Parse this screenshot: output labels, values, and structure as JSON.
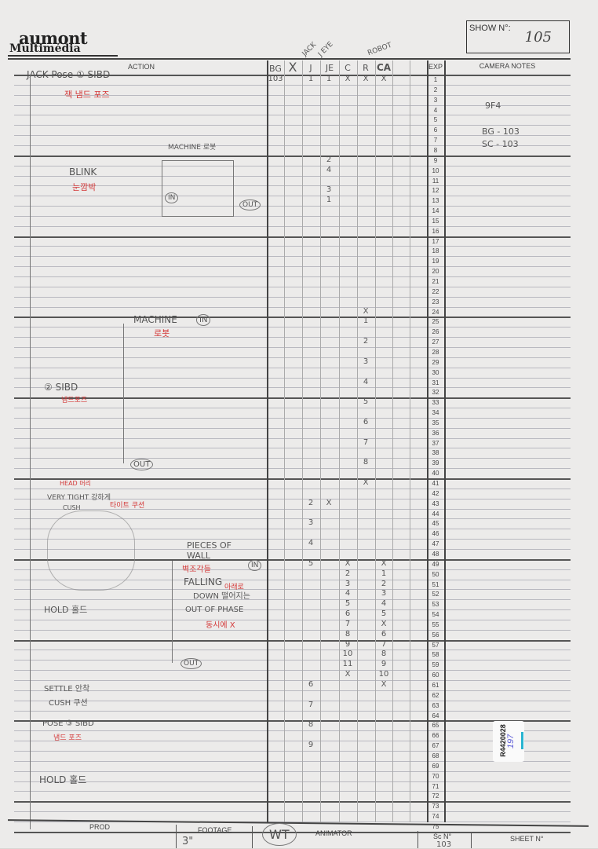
{
  "header": {
    "logo_line1": "aumont",
    "logo_line2": "Multimédia",
    "show_label": "SHOW N°:",
    "show_value": "105"
  },
  "columns": {
    "action": "ACTION",
    "bg": "BG",
    "x": "X",
    "j": "J",
    "je": "JE",
    "c": "C",
    "r": "R",
    "ca": "CA",
    "exp": "EXP",
    "camera_notes": "CAMERA NOTES",
    "group_jack": "JACK",
    "group_jeye": "J EYE",
    "group_robot": "ROBOT"
  },
  "exp_numbers": [
    "1",
    "2",
    "3",
    "4",
    "5",
    "6",
    "7",
    "8",
    "9",
    "10",
    "11",
    "12",
    "13",
    "14",
    "15",
    "16",
    "17",
    "18",
    "19",
    "20",
    "21",
    "22",
    "23",
    "24",
    "25",
    "26",
    "27",
    "28",
    "29",
    "30",
    "31",
    "32",
    "33",
    "34",
    "35",
    "36",
    "37",
    "38",
    "39",
    "40",
    "41",
    "42",
    "43",
    "44",
    "45",
    "46",
    "47",
    "48",
    "49",
    "50",
    "51",
    "52",
    "53",
    "54",
    "55",
    "56",
    "57",
    "58",
    "59",
    "60",
    "61",
    "62",
    "63",
    "64",
    "65",
    "66",
    "67",
    "68",
    "69",
    "70",
    "71",
    "72",
    "73",
    "74",
    "75"
  ],
  "marks": [
    {
      "row": 1,
      "col": "bg",
      "text": "103"
    },
    {
      "row": 1,
      "col": "j",
      "text": "1"
    },
    {
      "row": 1,
      "col": "je",
      "text": "1"
    },
    {
      "row": 1,
      "col": "c",
      "text": "X"
    },
    {
      "row": 1,
      "col": "r",
      "text": "X"
    },
    {
      "row": 1,
      "col": "ca",
      "text": "X"
    },
    {
      "row": 9,
      "col": "je",
      "text": "2"
    },
    {
      "row": 10,
      "col": "je",
      "text": "4"
    },
    {
      "row": 12,
      "col": "je",
      "text": "3"
    },
    {
      "row": 13,
      "col": "je",
      "text": "1"
    },
    {
      "row": 24,
      "col": "r",
      "text": "X"
    },
    {
      "row": 25,
      "col": "r",
      "text": "1"
    },
    {
      "row": 27,
      "col": "r",
      "text": "2"
    },
    {
      "row": 29,
      "col": "r",
      "text": "3"
    },
    {
      "row": 31,
      "col": "r",
      "text": "4"
    },
    {
      "row": 33,
      "col": "r",
      "text": "5"
    },
    {
      "row": 35,
      "col": "r",
      "text": "6"
    },
    {
      "row": 37,
      "col": "r",
      "text": "7"
    },
    {
      "row": 39,
      "col": "r",
      "text": "8"
    },
    {
      "row": 41,
      "col": "r",
      "text": "X"
    },
    {
      "row": 43,
      "col": "j",
      "text": "2"
    },
    {
      "row": 43,
      "col": "je",
      "text": "X"
    },
    {
      "row": 45,
      "col": "j",
      "text": "3"
    },
    {
      "row": 47,
      "col": "j",
      "text": "4"
    },
    {
      "row": 49,
      "col": "j",
      "text": "5"
    },
    {
      "row": 61,
      "col": "j",
      "text": "6"
    },
    {
      "row": 63,
      "col": "j",
      "text": "7"
    },
    {
      "row": 65,
      "col": "j",
      "text": "8"
    },
    {
      "row": 67,
      "col": "j",
      "text": "9"
    },
    {
      "row": 49,
      "col": "c",
      "text": "X"
    },
    {
      "row": 50,
      "col": "c",
      "text": "2"
    },
    {
      "row": 51,
      "col": "c",
      "text": "3"
    },
    {
      "row": 52,
      "col": "c",
      "text": "4"
    },
    {
      "row": 53,
      "col": "c",
      "text": "5"
    },
    {
      "row": 54,
      "col": "c",
      "text": "6"
    },
    {
      "row": 55,
      "col": "c",
      "text": "7"
    },
    {
      "row": 56,
      "col": "c",
      "text": "8"
    },
    {
      "row": 57,
      "col": "c",
      "text": "9"
    },
    {
      "row": 58,
      "col": "c",
      "text": "10"
    },
    {
      "row": 59,
      "col": "c",
      "text": "11"
    },
    {
      "row": 60,
      "col": "c",
      "text": "X"
    },
    {
      "row": 49,
      "col": "ca",
      "text": "X"
    },
    {
      "row": 50,
      "col": "ca",
      "text": "1"
    },
    {
      "row": 51,
      "col": "ca",
      "text": "2"
    },
    {
      "row": 52,
      "col": "ca",
      "text": "3"
    },
    {
      "row": 53,
      "col": "ca",
      "text": "4"
    },
    {
      "row": 54,
      "col": "ca",
      "text": "5"
    },
    {
      "row": 55,
      "col": "ca",
      "text": "X"
    },
    {
      "row": 56,
      "col": "ca",
      "text": "6"
    },
    {
      "row": 57,
      "col": "ca",
      "text": "7"
    },
    {
      "row": 58,
      "col": "ca",
      "text": "8"
    },
    {
      "row": 59,
      "col": "ca",
      "text": "9"
    },
    {
      "row": 60,
      "col": "ca",
      "text": "10"
    },
    {
      "row": 61,
      "col": "ca",
      "text": "X"
    }
  ],
  "camera_notes": [
    "9F4",
    "BG - 103",
    "SC - 103"
  ],
  "action_notes": {
    "jack_pose": "JACK  Pose ① SIBD",
    "jack_pose_kr": "잭  냄드 포즈",
    "machine": "MACHINE 로봇",
    "blink": "BLINK",
    "blink_kr": "눈깜박",
    "in1": "IN",
    "out1": "OUT",
    "machine2": "MACHINE",
    "machine2_kr": "로봇",
    "in2": "IN",
    "sibd2": "② SIBD",
    "sibd2_kr": "냄드포즈",
    "out2": "OUT",
    "head": "HEAD 머리",
    "very_tight": "VERY TIGHT 강하게",
    "very_tight_kr": "타이트 쿠션",
    "cush": "CUSH",
    "pieces": "PIECES OF WALL",
    "pieces_kr": "벽조각들",
    "in3": "IN",
    "falling": "FALLING",
    "falling_kr": "아래로",
    "down": "DOWN 떨어지는",
    "out_of_phase": "OUT OF PHASE",
    "out_of_phase_kr": "동시에 X",
    "hold1": "HOLD 홀드",
    "out3": "OUT",
    "settle": "SETTLE 안착",
    "cush2": "CUSH 쿠션",
    "pose3": "POSE ③ SIBD",
    "pose3_kr": "냄드 포즈",
    "hold2": "HOLD 홀드"
  },
  "footer": {
    "prod": "PROD",
    "footage": "FOOTAGE",
    "footage_value": "3\"",
    "animator_initials": "WT",
    "animator": "ANIMATOR",
    "scene_label": "Sc N°",
    "scene_value": "103",
    "sheet_label": "SHEET N°"
  },
  "sticker": {
    "code": "R4420028",
    "hand": "197",
    "accent": "#28b4d0"
  }
}
